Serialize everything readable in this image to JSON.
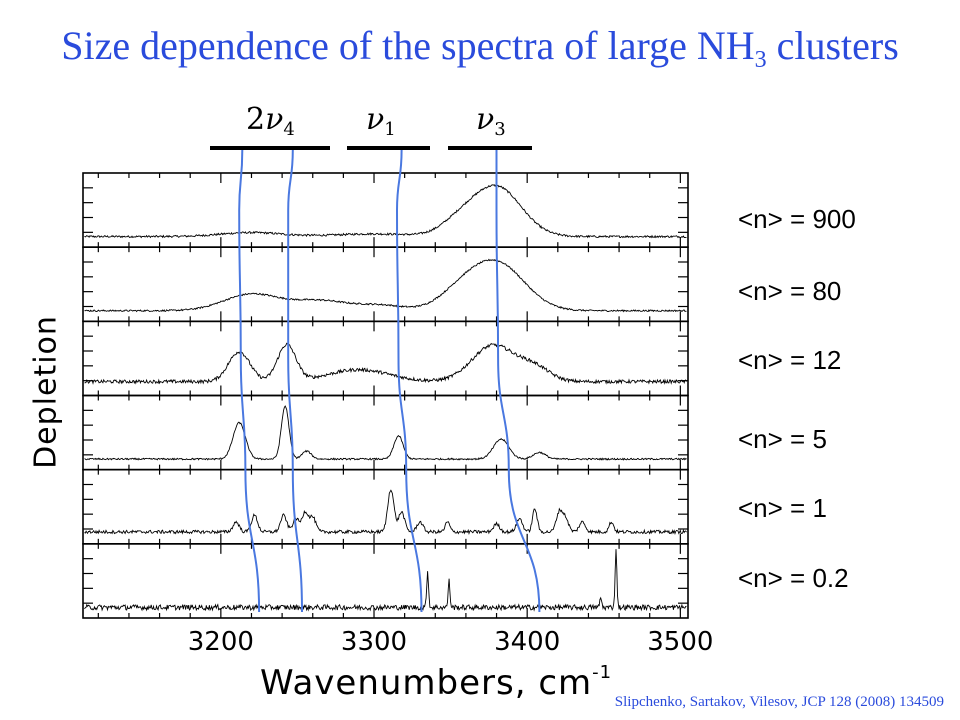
{
  "title": {
    "main": "Size dependence of the spectra of large NH",
    "sub": "3",
    "tail": " clusters"
  },
  "bands": [
    {
      "prefix": "2",
      "symbol": "ν",
      "sub": "4"
    },
    {
      "prefix": "",
      "symbol": "ν",
      "sub": "1"
    },
    {
      "prefix": "",
      "symbol": "ν",
      "sub": "3"
    }
  ],
  "size_labels": [
    "<n> = 900",
    "<n> = 80",
    "<n> = 12",
    "<n> = 5",
    "<n> = 1",
    "<n> = 0.2"
  ],
  "citation": "Slipchenko, Sartakov, Vilesov, JCP 128 (2008) 134509",
  "colors": {
    "title": "#2a4bdc",
    "guide_lines": "#4a78e0",
    "trace": "#000000"
  },
  "chart_data": {
    "type": "line",
    "title": "Size dependence of the spectra of large NH3 clusters",
    "xlabel": "Wavenumbers, cm-1",
    "xlabel_parts": {
      "main": "Wavenumbers, cm",
      "sup": "-1"
    },
    "ylabel": "Depletion",
    "xlim": [
      3110,
      3505
    ],
    "xticks": [
      3200,
      3300,
      3400,
      3500
    ],
    "panels": 6,
    "grid": false,
    "series": [
      {
        "name": "<n> = 900",
        "baseline": 0.1,
        "peaks": [
          {
            "x": 3380,
            "h": 0.75,
            "w": 16
          },
          {
            "x": 3355,
            "h": 0.18,
            "w": 12
          },
          {
            "x": 3220,
            "h": 0.06,
            "w": 20
          },
          {
            "x": 3300,
            "h": 0.04,
            "w": 25
          }
        ],
        "noise": 0.015
      },
      {
        "name": "<n> = 80",
        "baseline": 0.1,
        "peaks": [
          {
            "x": 3380,
            "h": 0.72,
            "w": 18
          },
          {
            "x": 3355,
            "h": 0.2,
            "w": 14
          },
          {
            "x": 3220,
            "h": 0.25,
            "w": 18
          },
          {
            "x": 3265,
            "h": 0.15,
            "w": 18
          },
          {
            "x": 3305,
            "h": 0.08,
            "w": 15
          }
        ],
        "noise": 0.012
      },
      {
        "name": "<n> = 12",
        "baseline": 0.15,
        "peaks": [
          {
            "x": 3212,
            "h": 0.45,
            "w": 7
          },
          {
            "x": 3243,
            "h": 0.55,
            "w": 6
          },
          {
            "x": 3290,
            "h": 0.18,
            "w": 20
          },
          {
            "x": 3378,
            "h": 0.55,
            "w": 14
          },
          {
            "x": 3405,
            "h": 0.2,
            "w": 10
          }
        ],
        "noise": 0.025
      },
      {
        "name": "<n> = 5",
        "baseline": 0.1,
        "peaks": [
          {
            "x": 3212,
            "h": 0.55,
            "w": 4
          },
          {
            "x": 3242,
            "h": 0.8,
            "w": 2.5
          },
          {
            "x": 3256,
            "h": 0.12,
            "w": 3
          },
          {
            "x": 3316,
            "h": 0.35,
            "w": 3
          },
          {
            "x": 3383,
            "h": 0.3,
            "w": 5
          },
          {
            "x": 3408,
            "h": 0.1,
            "w": 4
          }
        ],
        "noise": 0.012
      },
      {
        "name": "<n> = 1",
        "baseline": 0.12,
        "peaks": [
          {
            "x": 3210,
            "h": 0.15,
            "w": 2
          },
          {
            "x": 3222,
            "h": 0.25,
            "w": 2
          },
          {
            "x": 3241,
            "h": 0.25,
            "w": 2
          },
          {
            "x": 3249,
            "h": 0.2,
            "w": 2
          },
          {
            "x": 3255,
            "h": 0.3,
            "w": 2
          },
          {
            "x": 3260,
            "h": 0.22,
            "w": 2
          },
          {
            "x": 3311,
            "h": 0.65,
            "w": 2
          },
          {
            "x": 3318,
            "h": 0.3,
            "w": 2
          },
          {
            "x": 3330,
            "h": 0.15,
            "w": 2
          },
          {
            "x": 3348,
            "h": 0.15,
            "w": 1.5
          },
          {
            "x": 3380,
            "h": 0.12,
            "w": 2
          },
          {
            "x": 3395,
            "h": 0.2,
            "w": 2
          },
          {
            "x": 3405,
            "h": 0.35,
            "w": 1.5
          },
          {
            "x": 3421,
            "h": 0.3,
            "w": 2
          },
          {
            "x": 3425,
            "h": 0.2,
            "w": 2
          },
          {
            "x": 3436,
            "h": 0.15,
            "w": 2
          },
          {
            "x": 3455,
            "h": 0.15,
            "w": 1.5
          }
        ],
        "noise": 0.025
      },
      {
        "name": "<n> = 0.2",
        "baseline": 0.1,
        "peaks": [
          {
            "x": 3335,
            "h": 0.55,
            "w": 0.6
          },
          {
            "x": 3349,
            "h": 0.4,
            "w": 0.6
          },
          {
            "x": 3458,
            "h": 0.85,
            "w": 0.6
          },
          {
            "x": 3448,
            "h": 0.15,
            "w": 0.6
          }
        ],
        "noise": 0.04
      }
    ],
    "guides": [
      {
        "band": "2ν4",
        "x": [
          3214,
          3212,
          3213,
          3216,
          3225
        ]
      },
      {
        "band": "2ν4",
        "x": [
          3247,
          3244,
          3244,
          3247,
          3253
        ]
      },
      {
        "band": "ν1",
        "x": [
          3318,
          3315,
          3316,
          3321,
          3331
        ]
      },
      {
        "band": "ν3",
        "x": [
          3380,
          3380,
          3381,
          3388,
          3408
        ]
      }
    ]
  }
}
